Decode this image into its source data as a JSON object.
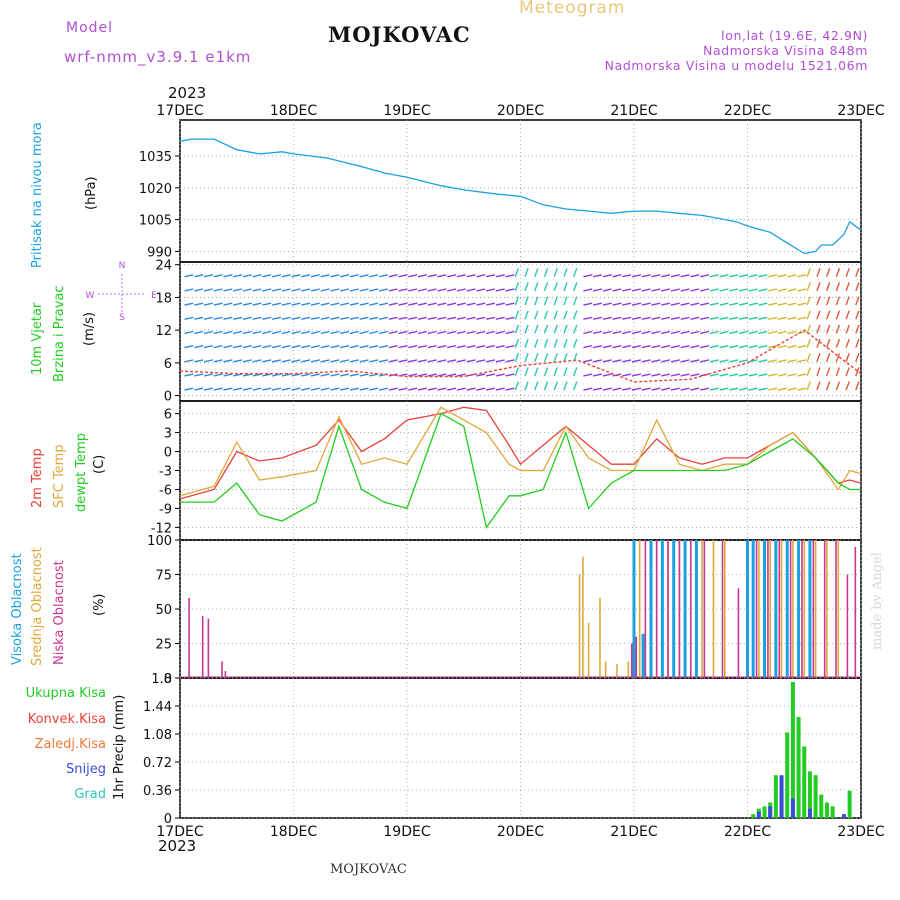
{
  "header": {
    "model_label": "Model",
    "model_name": "wrf-nmm_v3.9.1 e1km",
    "station": "MOJKOVAC",
    "meteogram": "Meteogram",
    "coords": "lon,lat (19.6E, 42.9N)",
    "elevation": "Nadmorska Visina 848m",
    "model_elevation": "Nadmorska Visina u modelu 1521.06m",
    "year_top": "2023",
    "year_bottom": "2023",
    "bottom_station": "MOJKOVAC",
    "credit": "made by Angel"
  },
  "colors": {
    "pressure": "#1ba1e2",
    "temp2m": "#e8423a",
    "sfc": "#e0a83c",
    "dewpt": "#22cc22",
    "cloud_high": "#1ba1e2",
    "cloud_mid": "#e0a83c",
    "cloud_low": "#c7388f",
    "rain_total": "#22cc22",
    "rain_conv": "#e8423a",
    "rain_freez": "#ef7a3a",
    "snow": "#3a4bd8",
    "hail": "#2bc7b5"
  },
  "chart_data": [
    {
      "type": "line",
      "panel": "pressure",
      "ylabel_main": "Pritisak na nivou mora",
      "ylabel_unit": "(hPa)",
      "ylim": [
        985,
        1052
      ],
      "yticks": [
        990,
        1005,
        1020,
        1035
      ],
      "xlim": [
        0,
        6
      ],
      "x_tick_labels": [
        "17DEC",
        "18DEC",
        "19DEC",
        "20DEC",
        "21DEC",
        "22DEC",
        "23DEC"
      ],
      "grid": true,
      "x": [
        0,
        0.1,
        0.3,
        0.5,
        0.7,
        0.9,
        1.0,
        1.3,
        1.6,
        1.8,
        2.0,
        2.3,
        2.5,
        2.8,
        3.0,
        3.2,
        3.4,
        3.6,
        3.8,
        4.0,
        4.2,
        4.4,
        4.6,
        4.7,
        4.9,
        5.0,
        5.2,
        5.35,
        5.5,
        5.6,
        5.65,
        5.75,
        5.85,
        5.9,
        6.0
      ],
      "values": [
        1042,
        1043,
        1043,
        1038,
        1036,
        1037,
        1036,
        1034,
        1030,
        1027,
        1025,
        1021,
        1019,
        1017,
        1016,
        1012,
        1010,
        1009,
        1008,
        1009,
        1009,
        1008,
        1007,
        1006,
        1004,
        1002,
        999,
        994,
        989,
        990,
        993,
        993,
        998,
        1004,
        1000
      ]
    },
    {
      "type": "barbs",
      "panel": "wind",
      "ylabel_main": "10m Vjetar",
      "ylabel_sub": "Brzina i Pravac",
      "ylabel_unit": "(m/s)",
      "compass": [
        "N",
        "S",
        "W",
        "E"
      ],
      "ylim": [
        -1,
        24.5
      ],
      "yticks": [
        0,
        6,
        12,
        18,
        24
      ],
      "x": [
        0,
        0.5,
        1.0,
        1.5,
        2.0,
        2.5,
        3.0,
        3.5,
        4.0,
        4.5,
        5.0,
        5.5,
        6.0
      ],
      "speed": [
        4.5,
        4.0,
        4.0,
        4.5,
        3.5,
        3.5,
        5.5,
        6.5,
        2.5,
        3.0,
        6.0,
        12.0,
        4.0
      ]
    },
    {
      "type": "line",
      "panel": "temperature",
      "ylabel_series": [
        "2m Temp",
        "SFC Temp",
        "dewpt Temp"
      ],
      "ylabel_unit": "(C)",
      "ylim": [
        -14,
        8
      ],
      "yticks": [
        -12,
        -9,
        -6,
        -3,
        0,
        3,
        6
      ],
      "x": [
        0,
        0.3,
        0.5,
        0.7,
        0.9,
        1.2,
        1.4,
        1.6,
        1.8,
        2.0,
        2.3,
        2.5,
        2.7,
        2.9,
        3.0,
        3.2,
        3.4,
        3.6,
        3.8,
        4.0,
        4.2,
        4.4,
        4.6,
        4.8,
        5.0,
        5.2,
        5.4,
        5.6,
        5.8,
        5.9,
        6.0
      ],
      "series": [
        {
          "name": "2m Temp",
          "values": [
            -7.5,
            -6,
            0,
            -1.5,
            -1,
            1,
            5,
            0,
            2,
            5,
            6,
            7,
            6.5,
            1,
            -2,
            1,
            4,
            1,
            -2,
            -2,
            2,
            -1,
            -2,
            -1,
            -1,
            1,
            3,
            -1,
            -5,
            -4.5,
            -5
          ]
        },
        {
          "name": "SFC Temp",
          "values": [
            -7,
            -5.5,
            1.5,
            -4.5,
            -4,
            -3,
            5.5,
            -2,
            -1,
            -2,
            7,
            5,
            3,
            -2,
            -3,
            -3,
            4,
            -1,
            -3,
            -3,
            5,
            -2,
            -3,
            -2,
            -2,
            1,
            3,
            -1,
            -6,
            -3,
            -3.5
          ]
        },
        {
          "name": "dewpt Temp",
          "values": [
            -8,
            -8,
            -5,
            -10,
            -11,
            -8,
            4,
            -6,
            -8,
            -9,
            6,
            4,
            -12,
            -7,
            -7,
            -6,
            3,
            -9,
            -5,
            -3,
            -3,
            -3,
            -3,
            -3,
            -2,
            0,
            2,
            -1,
            -5,
            -6,
            -6
          ]
        }
      ]
    },
    {
      "type": "bar",
      "panel": "clouds",
      "ylabel_series": [
        "Visoka Oblacnost",
        "Srednja Oblacnost",
        "Niska Oblacnost"
      ],
      "ylabel_unit": "(%)",
      "ylim": [
        0,
        100
      ],
      "yticks": [
        0,
        25,
        50,
        75,
        100
      ],
      "series": [
        {
          "name": "Visoka Oblacnost",
          "x": [
            4.0,
            4.08,
            4.15,
            4.25,
            4.35,
            4.45,
            4.55,
            5.0,
            5.05,
            5.15,
            5.25,
            5.35,
            5.45,
            5.55
          ],
          "values": [
            100,
            32,
            100,
            100,
            100,
            100,
            100,
            100,
            100,
            100,
            100,
            100,
            100,
            100
          ]
        },
        {
          "name": "Srednja Oblacnost",
          "x": [
            3.52,
            3.55,
            3.6,
            3.7,
            3.75,
            3.85,
            3.95,
            4.05,
            4.2,
            4.3,
            4.4,
            4.5,
            4.6,
            4.7,
            4.8,
            5.1,
            5.2,
            5.3,
            5.4,
            5.5,
            5.6,
            5.7,
            5.8
          ],
          "values": [
            75,
            88,
            40,
            58,
            12,
            10,
            12,
            100,
            100,
            100,
            100,
            100,
            100,
            100,
            100,
            100,
            100,
            100,
            100,
            100,
            100,
            100,
            100
          ]
        },
        {
          "name": "Niska Oblacnost",
          "x": [
            0.08,
            0.2,
            0.25,
            0.37,
            0.4,
            3.98,
            4.02,
            4.1,
            4.2,
            4.3,
            4.4,
            4.5,
            4.62,
            4.78,
            4.92,
            5.08,
            5.18,
            5.28,
            5.38,
            5.48,
            5.58,
            5.68,
            5.78,
            5.88,
            5.95
          ],
          "values": [
            58,
            45,
            43,
            12,
            5,
            25,
            30,
            100,
            100,
            100,
            100,
            100,
            100,
            100,
            65,
            100,
            100,
            100,
            100,
            100,
            100,
            100,
            100,
            75,
            95
          ]
        }
      ]
    },
    {
      "type": "bar",
      "panel": "precipitation",
      "ylabel_unit": "1hr Precip (mm)",
      "legend": [
        "Ukupna Kisa",
        "Konvek.Kisa",
        "Zaledj.Kisa",
        "Snijeg",
        "Grad"
      ],
      "ylim": [
        0,
        1.8
      ],
      "yticks": [
        0,
        0.36,
        0.72,
        1.08,
        1.44,
        1.8
      ],
      "series": [
        {
          "name": "Ukupna Kisa",
          "x": [
            5.05,
            5.1,
            5.15,
            5.2,
            5.25,
            5.3,
            5.35,
            5.4,
            5.45,
            5.5,
            5.55,
            5.6,
            5.65,
            5.7,
            5.75,
            5.9
          ],
          "values": [
            0.05,
            0.12,
            0.15,
            0.2,
            0.55,
            0.35,
            1.1,
            1.75,
            1.3,
            0.92,
            0.6,
            0.55,
            0.3,
            0.2,
            0.15,
            0.35
          ]
        },
        {
          "name": "Snijeg",
          "x": [
            5.1,
            5.2,
            5.3,
            5.4,
            5.55,
            5.85
          ],
          "values": [
            0.08,
            0.15,
            0.55,
            0.25,
            0.12,
            0.05
          ]
        }
      ]
    }
  ]
}
